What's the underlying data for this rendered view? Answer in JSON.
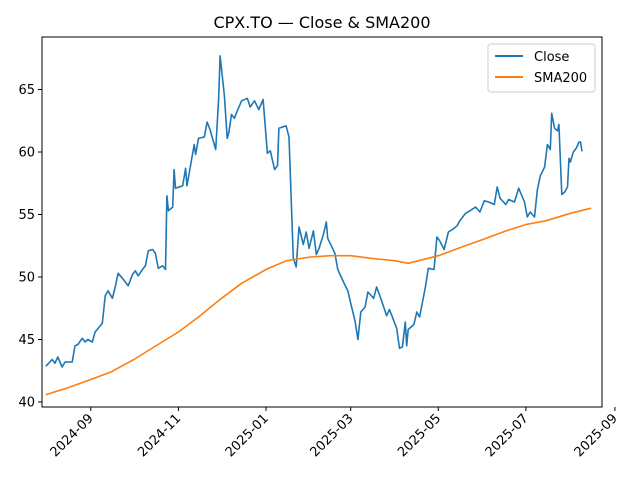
{
  "chart_data": {
    "type": "line",
    "title": "CPX.TO — Close & SMA200",
    "xlabel": "",
    "ylabel": "",
    "xlim": [
      "2024-07-29",
      "2025-08-23"
    ],
    "ylim": [
      39.6,
      69.2
    ],
    "grid": false,
    "legend_position": "upper right",
    "x_ticks": [
      "2024-09",
      "2024-11",
      "2025-01",
      "2025-03",
      "2025-05",
      "2025-07",
      "2025-09"
    ],
    "y_ticks": [
      40,
      45,
      50,
      55,
      60,
      65
    ],
    "series": [
      {
        "name": "Close",
        "color": "#1f77b4",
        "points": [
          [
            "2024-08-01",
            42.9
          ],
          [
            "2024-08-05",
            43.4
          ],
          [
            "2024-08-07",
            43.1
          ],
          [
            "2024-08-09",
            43.6
          ],
          [
            "2024-08-12",
            42.8
          ],
          [
            "2024-08-14",
            43.2
          ],
          [
            "2024-08-19",
            43.2
          ],
          [
            "2024-08-21",
            44.5
          ],
          [
            "2024-08-23",
            44.6
          ],
          [
            "2024-08-26",
            45.1
          ],
          [
            "2024-08-28",
            44.8
          ],
          [
            "2024-08-30",
            45.0
          ],
          [
            "2024-09-02",
            44.8
          ],
          [
            "2024-09-04",
            45.6
          ],
          [
            "2024-09-09",
            46.3
          ],
          [
            "2024-09-11",
            48.5
          ],
          [
            "2024-09-13",
            48.9
          ],
          [
            "2024-09-16",
            48.3
          ],
          [
            "2024-09-18",
            49.2
          ],
          [
            "2024-09-20",
            50.3
          ],
          [
            "2024-09-23",
            49.9
          ],
          [
            "2024-09-25",
            49.6
          ],
          [
            "2024-09-27",
            49.3
          ],
          [
            "2024-09-30",
            50.2
          ],
          [
            "2024-10-02",
            50.5
          ],
          [
            "2024-10-04",
            50.1
          ],
          [
            "2024-10-07",
            50.6
          ],
          [
            "2024-10-09",
            50.9
          ],
          [
            "2024-10-11",
            52.1
          ],
          [
            "2024-10-14",
            52.2
          ],
          [
            "2024-10-16",
            51.9
          ],
          [
            "2024-10-18",
            50.7
          ],
          [
            "2024-10-21",
            50.9
          ],
          [
            "2024-10-23",
            50.6
          ],
          [
            "2024-10-24",
            56.5
          ],
          [
            "2024-10-25",
            55.3
          ],
          [
            "2024-10-28",
            55.6
          ],
          [
            "2024-10-29",
            58.6
          ],
          [
            "2024-10-30",
            57.1
          ],
          [
            "2024-11-04",
            57.3
          ],
          [
            "2024-11-06",
            58.7
          ],
          [
            "2024-11-07",
            57.3
          ],
          [
            "2024-11-12",
            60.6
          ],
          [
            "2024-11-13",
            59.8
          ],
          [
            "2024-11-15",
            61.1
          ],
          [
            "2024-11-19",
            61.2
          ],
          [
            "2024-11-21",
            62.4
          ],
          [
            "2024-11-23",
            61.8
          ],
          [
            "2024-11-27",
            60.2
          ],
          [
            "2024-11-29",
            64.2
          ],
          [
            "2024-11-30",
            67.7
          ],
          [
            "2024-12-03",
            64.5
          ],
          [
            "2024-12-05",
            61.1
          ],
          [
            "2024-12-06",
            61.5
          ],
          [
            "2024-12-08",
            63.0
          ],
          [
            "2024-12-10",
            62.7
          ],
          [
            "2024-12-12",
            63.3
          ],
          [
            "2024-12-15",
            64.1
          ],
          [
            "2024-12-19",
            64.3
          ],
          [
            "2024-12-21",
            63.6
          ],
          [
            "2024-12-24",
            64.1
          ],
          [
            "2024-12-27",
            63.4
          ],
          [
            "2024-12-30",
            64.2
          ],
          [
            "2025-01-02",
            59.9
          ],
          [
            "2025-01-04",
            60.1
          ],
          [
            "2025-01-07",
            58.6
          ],
          [
            "2025-01-09",
            58.9
          ],
          [
            "2025-01-10",
            61.9
          ],
          [
            "2025-01-15",
            62.1
          ],
          [
            "2025-01-17",
            61.2
          ],
          [
            "2025-01-20",
            51.5
          ],
          [
            "2025-01-22",
            50.8
          ],
          [
            "2025-01-24",
            54.0
          ],
          [
            "2025-01-27",
            52.6
          ],
          [
            "2025-01-29",
            53.6
          ],
          [
            "2025-01-31",
            52.3
          ],
          [
            "2025-02-03",
            53.7
          ],
          [
            "2025-02-05",
            51.8
          ],
          [
            "2025-02-07",
            52.3
          ],
          [
            "2025-02-10",
            53.4
          ],
          [
            "2025-02-12",
            54.4
          ],
          [
            "2025-02-13",
            53.1
          ],
          [
            "2025-02-18",
            51.9
          ],
          [
            "2025-02-20",
            50.6
          ],
          [
            "2025-02-24",
            49.6
          ],
          [
            "2025-02-27",
            48.9
          ],
          [
            "2025-03-01",
            47.9
          ],
          [
            "2025-03-04",
            46.5
          ],
          [
            "2025-03-06",
            45.0
          ],
          [
            "2025-03-08",
            47.2
          ],
          [
            "2025-03-11",
            47.6
          ],
          [
            "2025-03-13",
            48.8
          ],
          [
            "2025-03-17",
            48.3
          ],
          [
            "2025-03-19",
            49.2
          ],
          [
            "2025-03-21",
            48.6
          ],
          [
            "2025-03-24",
            47.6
          ],
          [
            "2025-03-26",
            46.9
          ],
          [
            "2025-03-28",
            47.4
          ],
          [
            "2025-03-31",
            46.5
          ],
          [
            "2025-04-02",
            45.9
          ],
          [
            "2025-04-04",
            44.3
          ],
          [
            "2025-04-06",
            44.4
          ],
          [
            "2025-04-08",
            46.4
          ],
          [
            "2025-04-09",
            44.5
          ],
          [
            "2025-04-10",
            45.8
          ],
          [
            "2025-04-14",
            46.2
          ],
          [
            "2025-04-16",
            47.2
          ],
          [
            "2025-04-18",
            46.8
          ],
          [
            "2025-04-22",
            49.2
          ],
          [
            "2025-04-24",
            50.7
          ],
          [
            "2025-04-28",
            50.6
          ],
          [
            "2025-04-30",
            53.2
          ],
          [
            "2025-05-02",
            52.9
          ],
          [
            "2025-05-05",
            52.2
          ],
          [
            "2025-05-08",
            53.6
          ],
          [
            "2025-05-12",
            53.9
          ],
          [
            "2025-05-14",
            54.1
          ],
          [
            "2025-05-16",
            54.5
          ],
          [
            "2025-05-20",
            55.1
          ],
          [
            "2025-05-23",
            55.3
          ],
          [
            "2025-05-27",
            55.6
          ],
          [
            "2025-05-30",
            55.2
          ],
          [
            "2025-06-02",
            56.1
          ],
          [
            "2025-06-05",
            56.0
          ],
          [
            "2025-06-09",
            55.8
          ],
          [
            "2025-06-11",
            57.2
          ],
          [
            "2025-06-13",
            56.3
          ],
          [
            "2025-06-17",
            55.8
          ],
          [
            "2025-06-19",
            56.2
          ],
          [
            "2025-06-23",
            56.0
          ],
          [
            "2025-06-26",
            57.1
          ],
          [
            "2025-06-30",
            56.0
          ],
          [
            "2025-07-02",
            54.8
          ],
          [
            "2025-07-04",
            55.2
          ],
          [
            "2025-07-07",
            54.8
          ],
          [
            "2025-07-09",
            57.0
          ],
          [
            "2025-07-11",
            58.1
          ],
          [
            "2025-07-14",
            58.8
          ],
          [
            "2025-07-16",
            60.6
          ],
          [
            "2025-07-18",
            60.2
          ],
          [
            "2025-07-19",
            63.1
          ],
          [
            "2025-07-21",
            61.9
          ],
          [
            "2025-07-23",
            61.7
          ],
          [
            "2025-07-24",
            62.2
          ],
          [
            "2025-07-26",
            56.6
          ],
          [
            "2025-07-28",
            56.8
          ],
          [
            "2025-07-30",
            57.2
          ],
          [
            "2025-07-31",
            59.5
          ],
          [
            "2025-08-01",
            59.2
          ],
          [
            "2025-08-03",
            60.0
          ],
          [
            "2025-08-05",
            60.3
          ],
          [
            "2025-08-07",
            60.8
          ],
          [
            "2025-08-08",
            60.8
          ],
          [
            "2025-08-09",
            60.1
          ]
        ]
      },
      {
        "name": "SMA200",
        "color": "#ff7f0e",
        "points": [
          [
            "2024-08-01",
            40.6
          ],
          [
            "2024-08-15",
            41.1
          ],
          [
            "2024-09-01",
            41.8
          ],
          [
            "2024-09-15",
            42.4
          ],
          [
            "2024-10-01",
            43.4
          ],
          [
            "2024-10-15",
            44.4
          ],
          [
            "2024-11-01",
            45.6
          ],
          [
            "2024-11-15",
            46.8
          ],
          [
            "2024-12-01",
            48.3
          ],
          [
            "2024-12-15",
            49.5
          ],
          [
            "2025-01-01",
            50.6
          ],
          [
            "2025-01-15",
            51.3
          ],
          [
            "2025-02-01",
            51.6
          ],
          [
            "2025-02-15",
            51.7
          ],
          [
            "2025-03-01",
            51.7
          ],
          [
            "2025-03-15",
            51.5
          ],
          [
            "2025-04-01",
            51.3
          ],
          [
            "2025-04-10",
            51.1
          ],
          [
            "2025-05-01",
            51.7
          ],
          [
            "2025-05-15",
            52.3
          ],
          [
            "2025-06-01",
            53.0
          ],
          [
            "2025-06-15",
            53.6
          ],
          [
            "2025-07-01",
            54.2
          ],
          [
            "2025-07-15",
            54.5
          ],
          [
            "2025-08-01",
            55.1
          ],
          [
            "2025-08-15",
            55.5
          ]
        ]
      }
    ]
  }
}
